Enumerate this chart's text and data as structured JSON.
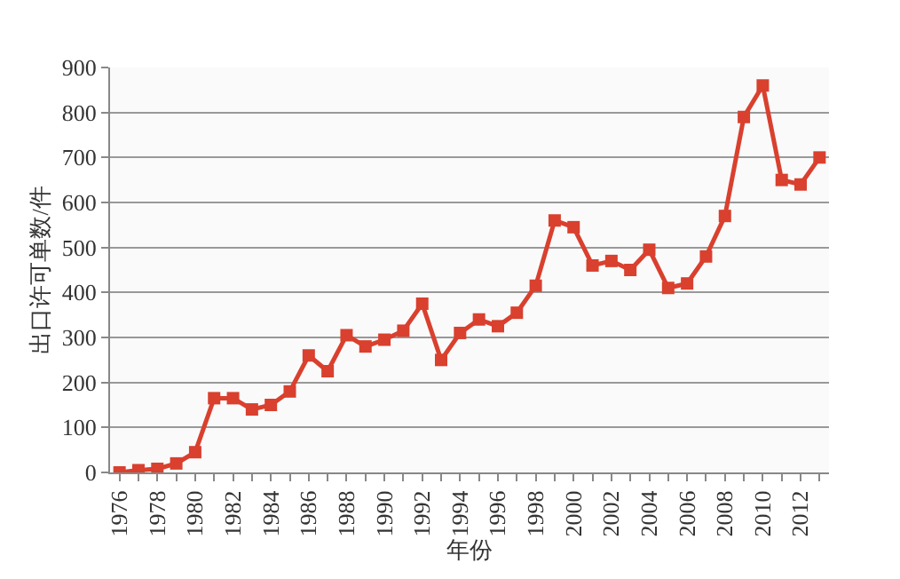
{
  "chart_data": {
    "type": "line",
    "xlabel": "年份",
    "ylabel": "出口许可单数/件",
    "x": [
      1976,
      1977,
      1978,
      1979,
      1980,
      1981,
      1982,
      1983,
      1984,
      1985,
      1986,
      1987,
      1988,
      1989,
      1990,
      1991,
      1992,
      1993,
      1994,
      1995,
      1996,
      1997,
      1998,
      1999,
      2000,
      2001,
      2002,
      2003,
      2004,
      2005,
      2006,
      2007,
      2008,
      2009,
      2010,
      2011,
      2012,
      2013
    ],
    "series": [
      {
        "color": "#d9402e",
        "values": [
          0,
          5,
          8,
          20,
          45,
          165,
          165,
          140,
          150,
          180,
          260,
          225,
          305,
          280,
          295,
          315,
          375,
          250,
          310,
          340,
          325,
          355,
          415,
          560,
          545,
          460,
          470,
          450,
          495,
          410,
          420,
          480,
          570,
          790,
          860,
          650,
          640,
          700
        ]
      }
    ],
    "xlim": [
      1975.5,
      2013.5
    ],
    "xticks": [
      1976,
      1978,
      1980,
      1982,
      1984,
      1986,
      1988,
      1990,
      1992,
      1994,
      1996,
      1998,
      2000,
      2002,
      2004,
      2006,
      2008,
      2010,
      2012
    ],
    "ylim": [
      0,
      900
    ],
    "yticks": [
      0,
      100,
      200,
      300,
      400,
      500,
      600,
      700,
      800,
      900
    ],
    "grid": "y",
    "marker": "square",
    "line_style": "solid",
    "legend": false
  }
}
